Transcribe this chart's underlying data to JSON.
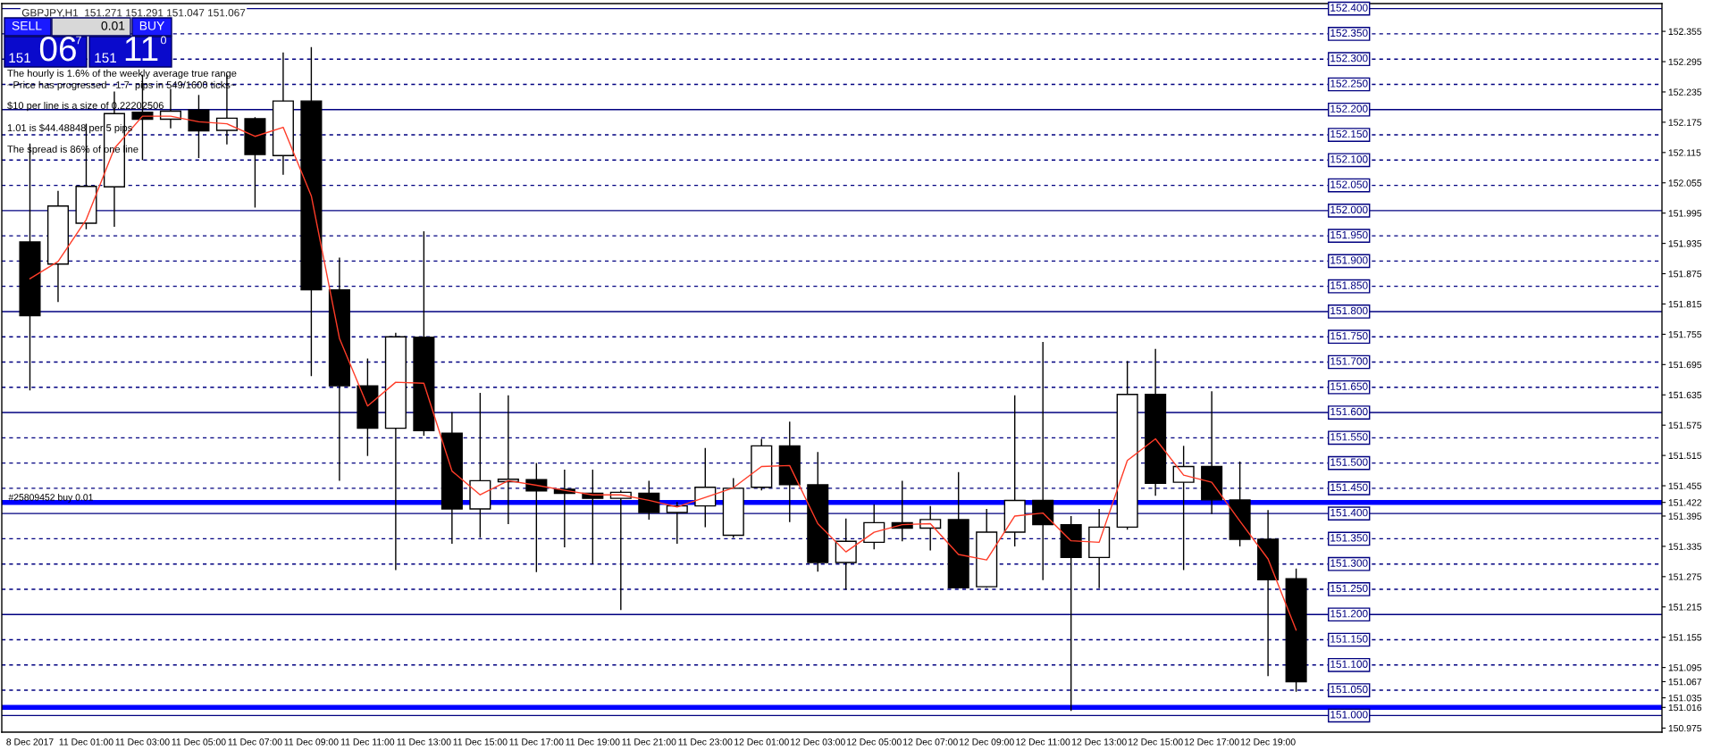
{
  "chart_data": {
    "type": "candlestick",
    "title": "GBPJPY,H1  151.271 151.291 151.047 151.067",
    "categories": [
      "8 Dec 2017",
      null,
      "11 Dec 01:00",
      null,
      "11 Dec 03:00",
      null,
      "11 Dec 05:00",
      null,
      "11 Dec 07:00",
      null,
      "11 Dec 09:00",
      null,
      "11 Dec 11:00",
      null,
      "11 Dec 13:00",
      null,
      "11 Dec 15:00",
      null,
      "11 Dec 17:00",
      null,
      "11 Dec 19:00",
      null,
      "11 Dec 21:00",
      null,
      "11 Dec 23:00",
      null,
      "12 Dec 01:00",
      null,
      "12 Dec 03:00",
      null,
      "12 Dec 05:00",
      null,
      "12 Dec 07:00",
      null,
      "12 Dec 09:00",
      null,
      "12 Dec 11:00",
      null,
      "12 Dec 13:00",
      null,
      "12 Dec 15:00",
      null,
      "12 Dec 17:00",
      null,
      "12 Dec 19:00",
      null
    ],
    "ohlc": [
      [
        151.938,
        152.133,
        151.644,
        151.792
      ],
      [
        151.894,
        152.039,
        151.819,
        152.009
      ],
      [
        151.975,
        152.172,
        151.963,
        152.048
      ],
      [
        152.047,
        152.236,
        151.968,
        152.192
      ],
      [
        152.195,
        152.269,
        152.1,
        152.181
      ],
      [
        152.181,
        152.241,
        152.163,
        152.197
      ],
      [
        152.199,
        152.229,
        152.104,
        152.158
      ],
      [
        152.159,
        152.269,
        152.131,
        152.183
      ],
      [
        152.182,
        152.185,
        152.006,
        152.111
      ],
      [
        152.109,
        152.313,
        152.071,
        152.217
      ],
      [
        152.217,
        152.324,
        151.672,
        151.843
      ],
      [
        151.843,
        151.907,
        151.465,
        151.653
      ],
      [
        151.653,
        151.707,
        151.514,
        151.569
      ],
      [
        151.569,
        151.758,
        151.288,
        151.75
      ],
      [
        151.749,
        151.959,
        151.554,
        151.564
      ],
      [
        151.559,
        151.601,
        151.34,
        151.409
      ],
      [
        151.409,
        151.639,
        151.352,
        151.465
      ],
      [
        151.463,
        151.634,
        151.379,
        151.468
      ],
      [
        151.467,
        151.5,
        151.284,
        151.445
      ],
      [
        151.448,
        151.487,
        151.333,
        151.44
      ],
      [
        151.44,
        151.487,
        151.3,
        151.43
      ],
      [
        151.43,
        151.446,
        151.209,
        151.442
      ],
      [
        151.44,
        151.465,
        151.388,
        151.402
      ],
      [
        151.402,
        151.423,
        151.34,
        151.415
      ],
      [
        151.415,
        151.53,
        151.373,
        151.452
      ],
      [
        151.357,
        151.47,
        151.352,
        151.45
      ],
      [
        151.452,
        151.548,
        151.446,
        151.534
      ],
      [
        151.534,
        151.582,
        151.383,
        151.457
      ],
      [
        151.457,
        151.522,
        151.285,
        151.303
      ],
      [
        151.303,
        151.39,
        151.249,
        151.345
      ],
      [
        151.343,
        151.418,
        151.329,
        151.382
      ],
      [
        151.382,
        151.465,
        151.345,
        151.371
      ],
      [
        151.371,
        151.415,
        151.327,
        151.388
      ],
      [
        151.388,
        151.482,
        151.252,
        151.253
      ],
      [
        151.255,
        151.409,
        151.253,
        151.363
      ],
      [
        151.363,
        151.634,
        151.335,
        151.426
      ],
      [
        151.426,
        151.74,
        151.268,
        151.378
      ],
      [
        151.378,
        151.395,
        151.009,
        151.313
      ],
      [
        151.313,
        151.409,
        151.252,
        151.373
      ],
      [
        151.373,
        151.702,
        151.368,
        151.636
      ],
      [
        151.636,
        151.726,
        151.435,
        151.46
      ],
      [
        151.462,
        151.534,
        151.288,
        151.493
      ],
      [
        151.493,
        151.642,
        151.399,
        151.427
      ],
      [
        151.427,
        151.503,
        151.335,
        151.349
      ],
      [
        151.349,
        151.407,
        151.078,
        151.269
      ],
      [
        151.271,
        151.291,
        151.047,
        151.067
      ]
    ],
    "series": [
      {
        "type": "line",
        "color": "#ff3c28",
        "values": [
          151.865,
          151.899,
          151.982,
          152.123,
          152.187,
          152.187,
          152.176,
          152.172,
          152.147,
          152.165,
          152.029,
          151.747,
          151.613,
          151.66,
          151.658,
          151.484,
          151.437,
          151.465,
          151.456,
          151.446,
          151.437,
          151.437,
          151.426,
          151.413,
          151.432,
          151.451,
          151.493,
          151.495,
          151.38,
          151.324,
          151.363,
          151.378,
          151.38,
          151.319,
          151.308,
          151.395,
          151.401,
          151.346,
          151.343,
          151.505,
          151.548,
          151.476,
          151.462,
          151.385,
          151.31,
          151.169
        ]
      }
    ],
    "ylim": [
      150.967,
      152.41
    ],
    "yticks": [
      152.355,
      152.295,
      152.235,
      152.175,
      152.115,
      152.055,
      151.995,
      151.935,
      151.875,
      151.815,
      151.755,
      151.695,
      151.635,
      151.575,
      151.515,
      151.455,
      151.422,
      151.395,
      151.335,
      151.275,
      151.215,
      151.155,
      151.095,
      151.067,
      151.035,
      151.016,
      150.975
    ],
    "ref_lines": [
      {
        "axis": "y",
        "value": 152.4,
        "label": "152.400",
        "color": "#000080",
        "line_style": "solid"
      },
      {
        "axis": "y",
        "value": 152.35,
        "label": "152.350",
        "color": "#000080",
        "line_style": "dashed"
      },
      {
        "axis": "y",
        "value": 152.3,
        "label": "152.300",
        "color": "#000080",
        "line_style": "dashed"
      },
      {
        "axis": "y",
        "value": 152.25,
        "label": "152.250",
        "color": "#000080",
        "line_style": "dashed"
      },
      {
        "axis": "y",
        "value": 152.2,
        "label": "152.200",
        "color": "#000080",
        "line_style": "solid"
      },
      {
        "axis": "y",
        "value": 152.15,
        "label": "152.150",
        "color": "#000080",
        "line_style": "dashed"
      },
      {
        "axis": "y",
        "value": 152.1,
        "label": "152.100",
        "color": "#000080",
        "line_style": "dashed"
      },
      {
        "axis": "y",
        "value": 152.05,
        "label": "152.050",
        "color": "#000080",
        "line_style": "dashed"
      },
      {
        "axis": "y",
        "value": 152.0,
        "label": "152.000",
        "color": "#000080",
        "line_style": "solid"
      },
      {
        "axis": "y",
        "value": 151.95,
        "label": "151.950",
        "color": "#000080",
        "line_style": "dashed"
      },
      {
        "axis": "y",
        "value": 151.9,
        "label": "151.900",
        "color": "#000080",
        "line_style": "dashed"
      },
      {
        "axis": "y",
        "value": 151.85,
        "label": "151.850",
        "color": "#000080",
        "line_style": "dashed"
      },
      {
        "axis": "y",
        "value": 151.8,
        "label": "151.800",
        "color": "#000080",
        "line_style": "solid"
      },
      {
        "axis": "y",
        "value": 151.75,
        "label": "151.750",
        "color": "#000080",
        "line_style": "dashed"
      },
      {
        "axis": "y",
        "value": 151.7,
        "label": "151.700",
        "color": "#000080",
        "line_style": "dashed"
      },
      {
        "axis": "y",
        "value": 151.65,
        "label": "151.650",
        "color": "#000080",
        "line_style": "dashed"
      },
      {
        "axis": "y",
        "value": 151.6,
        "label": "151.600",
        "color": "#000080",
        "line_style": "solid"
      },
      {
        "axis": "y",
        "value": 151.55,
        "label": "151.550",
        "color": "#000080",
        "line_style": "dashed"
      },
      {
        "axis": "y",
        "value": 151.5,
        "label": "151.500",
        "color": "#000080",
        "line_style": "dashed"
      },
      {
        "axis": "y",
        "value": 151.45,
        "label": "151.450",
        "color": "#000080",
        "line_style": "dashed"
      },
      {
        "axis": "y",
        "value": 151.4,
        "label": "151.400",
        "color": "#000080",
        "line_style": "solid"
      },
      {
        "axis": "y",
        "value": 151.35,
        "label": "151.350",
        "color": "#000080",
        "line_style": "dashed"
      },
      {
        "axis": "y",
        "value": 151.3,
        "label": "151.300",
        "color": "#000080",
        "line_style": "dashed"
      },
      {
        "axis": "y",
        "value": 151.25,
        "label": "151.250",
        "color": "#000080",
        "line_style": "dashed"
      },
      {
        "axis": "y",
        "value": 151.2,
        "label": "151.200",
        "color": "#000080",
        "line_style": "solid"
      },
      {
        "axis": "y",
        "value": 151.15,
        "label": "151.150",
        "color": "#000080",
        "line_style": "dashed"
      },
      {
        "axis": "y",
        "value": 151.1,
        "label": "151.100",
        "color": "#000080",
        "line_style": "dashed"
      },
      {
        "axis": "y",
        "value": 151.05,
        "label": "151.050",
        "color": "#000080",
        "line_style": "dashed"
      },
      {
        "axis": "y",
        "value": 151.0,
        "label": "151.000",
        "color": "#000080",
        "line_style": "solid"
      },
      {
        "axis": "y",
        "value": 151.422,
        "label": "#25809452 buy 0.01",
        "color": "#0000ff",
        "line_style": "solid"
      },
      {
        "axis": "y",
        "value": 151.016,
        "color": "#0000ff",
        "line_style": "solid"
      }
    ],
    "annotations": [
      "SELL",
      "0.01",
      "BUY",
      "151",
      "06",
      "7",
      "151",
      "11",
      "0",
      "The hourly is 1.6% of the weekly average true range",
      "~Price has progressed  -1.7  pips in 549/1600 ticks~",
      "$10 per line is a size of 0.22202506",
      "1.01 is $44.48848 per 5 pips",
      "The spread is 86% of one line"
    ]
  }
}
